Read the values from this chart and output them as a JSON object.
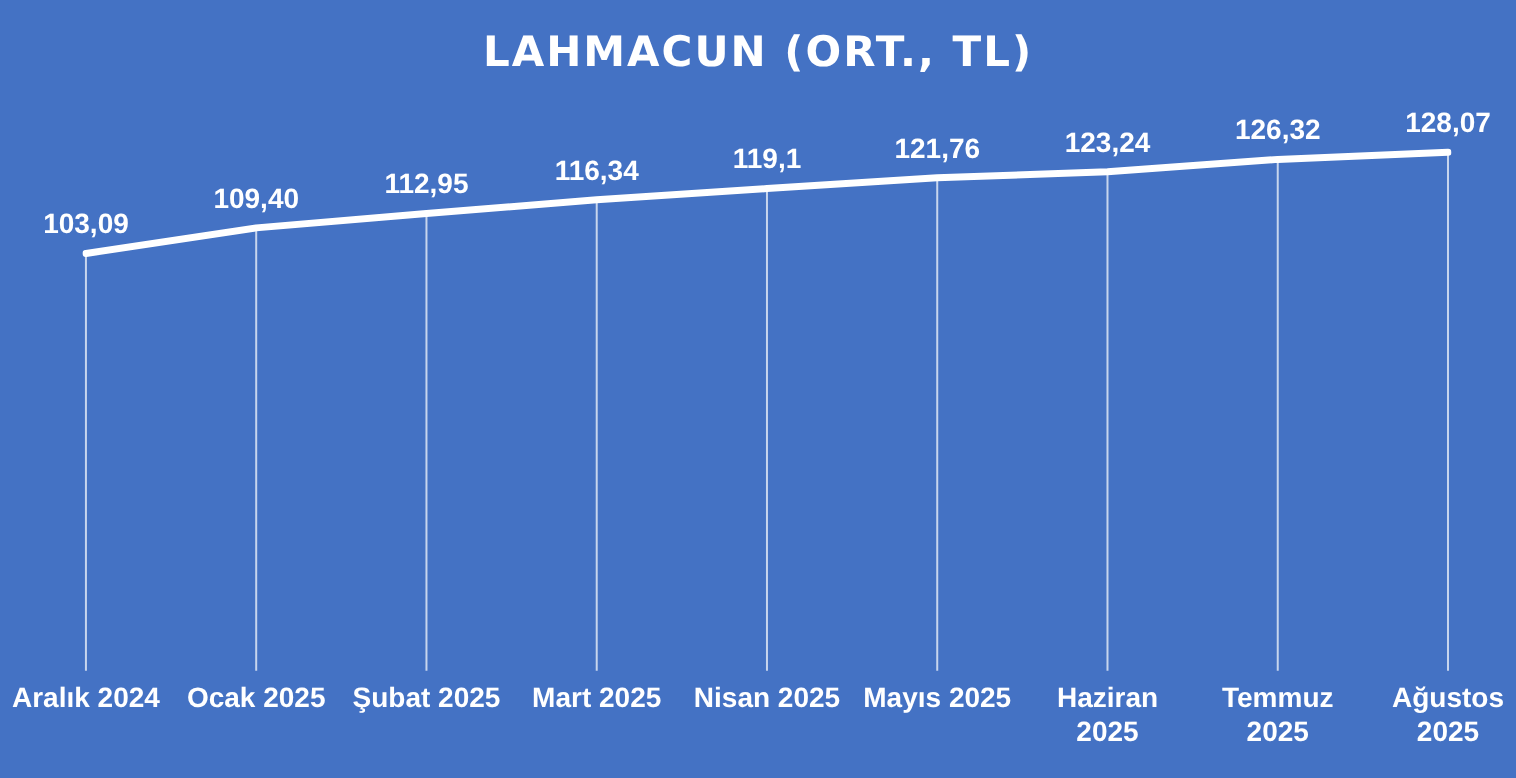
{
  "chart_data": {
    "type": "line",
    "title": "LAHMACUN (ORT., TL)",
    "categories": [
      "Aralık 2024",
      "Ocak 2025",
      "Şubat 2025",
      "Mart 2025",
      "Nisan 2025",
      "Mayıs 2025",
      "Haziran 2025",
      "Temmuz 2025",
      "Ağustos 2025"
    ],
    "series": [
      {
        "color": "#ffffff",
        "values": [
          103.09,
          109.4,
          112.95,
          116.34,
          119.1,
          121.76,
          123.24,
          126.32,
          128.07
        ],
        "value_labels": [
          "103,09",
          "109,40",
          "112,95",
          "116,34",
          "119,1",
          "121,76",
          "123,24",
          "126,32",
          "128,07"
        ]
      }
    ],
    "tick_labels": "x",
    "grid": "x",
    "legend": false,
    "marker": "none",
    "line_style": "solid"
  }
}
